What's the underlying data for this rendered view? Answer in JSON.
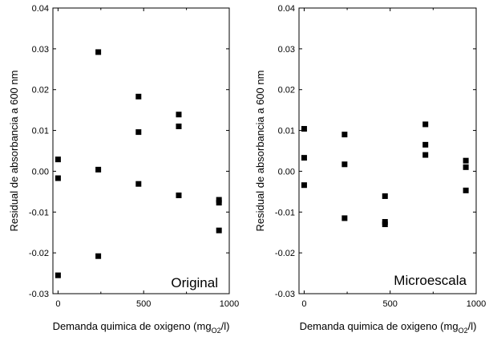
{
  "chart_data": [
    {
      "type": "scatter",
      "panel_label": "Original",
      "xlabel": "Demanda quimica de oxigeno (mg",
      "xlabel_sub": "O2",
      "xlabel_end": "/l)",
      "ylabel": "Residual de absorbancia a 600 nm",
      "xlim": [
        -30,
        1000
      ],
      "ylim": [
        -0.03,
        0.04
      ],
      "x_ticks": [
        0,
        250,
        500,
        750,
        1000
      ],
      "x_tick_labels": [
        "0",
        "",
        "500",
        "",
        "1000"
      ],
      "y_ticks": [
        -0.03,
        -0.02,
        -0.01,
        0.0,
        0.01,
        0.02,
        0.03,
        0.04
      ],
      "y_tick_labels": [
        "-0.03",
        "-0.02",
        "-0.01",
        "0.00",
        "0.01",
        "0.02",
        "0.03",
        "0.04"
      ],
      "grid": false,
      "points": [
        {
          "x": 0,
          "y": 0.0029
        },
        {
          "x": 0,
          "y": -0.0017
        },
        {
          "x": 0,
          "y": -0.0255
        },
        {
          "x": 235,
          "y": 0.0292
        },
        {
          "x": 235,
          "y": 0.0004
        },
        {
          "x": 235,
          "y": -0.0208
        },
        {
          "x": 470,
          "y": 0.0183
        },
        {
          "x": 470,
          "y": 0.0096
        },
        {
          "x": 470,
          "y": -0.0031
        },
        {
          "x": 705,
          "y": 0.0139
        },
        {
          "x": 705,
          "y": 0.011
        },
        {
          "x": 705,
          "y": -0.0059
        },
        {
          "x": 940,
          "y": -0.007
        },
        {
          "x": 940,
          "y": -0.0077
        },
        {
          "x": 940,
          "y": -0.0145
        }
      ]
    },
    {
      "type": "scatter",
      "panel_label": "Microescala",
      "xlabel": "Demanda quimica de oxigeno (mg",
      "xlabel_sub": "O2",
      "xlabel_end": "/l)",
      "ylabel": "Residual de absorbancia a 600 nm",
      "xlim": [
        -30,
        1000
      ],
      "ylim": [
        -0.03,
        0.04
      ],
      "x_ticks": [
        0,
        250,
        500,
        750,
        1000
      ],
      "x_tick_labels": [
        "0",
        "",
        "500",
        "",
        "1000"
      ],
      "y_ticks": [
        -0.03,
        -0.02,
        -0.01,
        0.0,
        0.01,
        0.02,
        0.03,
        0.04
      ],
      "y_tick_labels": [
        "-0.03",
        "-0.02",
        "-0.01",
        "0.00",
        "0.01",
        "0.02",
        "0.03",
        "0.04"
      ],
      "grid": false,
      "points": [
        {
          "x": 0,
          "y": 0.0104
        },
        {
          "x": 0,
          "y": 0.0033
        },
        {
          "x": 0,
          "y": -0.0034
        },
        {
          "x": 235,
          "y": 0.009
        },
        {
          "x": 235,
          "y": 0.0017
        },
        {
          "x": 235,
          "y": -0.0115
        },
        {
          "x": 470,
          "y": -0.0061
        },
        {
          "x": 470,
          "y": -0.0124
        },
        {
          "x": 470,
          "y": -0.013
        },
        {
          "x": 705,
          "y": 0.0115
        },
        {
          "x": 705,
          "y": 0.0065
        },
        {
          "x": 705,
          "y": 0.004
        },
        {
          "x": 940,
          "y": 0.0026
        },
        {
          "x": 940,
          "y": 0.001
        },
        {
          "x": 940,
          "y": -0.0047
        }
      ]
    }
  ]
}
